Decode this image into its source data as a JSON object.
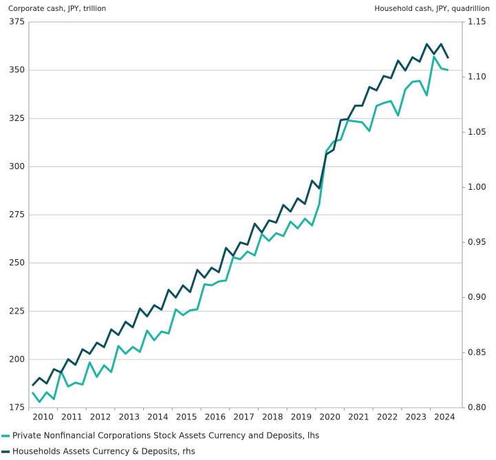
{
  "chart_data": {
    "type": "line",
    "y_label": "Corporate cash, JPY, trillion",
    "y2_label": "Household cash, JPY, quadrillion",
    "categories": [
      "2010",
      null,
      null,
      null,
      "2011",
      null,
      null,
      null,
      "2012",
      null,
      null,
      null,
      "2013",
      null,
      null,
      null,
      "2014",
      null,
      null,
      null,
      "2015",
      null,
      null,
      null,
      "2016",
      null,
      null,
      null,
      "2017",
      null,
      null,
      null,
      "2018",
      null,
      null,
      null,
      "2019",
      null,
      null,
      null,
      "2020",
      null,
      null,
      null,
      "2021",
      null,
      null,
      null,
      "2022",
      null,
      null,
      null,
      "2023",
      null,
      null,
      null,
      "2024",
      null,
      null
    ],
    "series": [
      {
        "name": "Private Nonfinancial Corporations Stock Assets Currency and Deposits, lhs",
        "color": "#1fb5a5",
        "axis": "y",
        "values": [
          183,
          178,
          183,
          179.5,
          194,
          186,
          188,
          187,
          198.5,
          191,
          197,
          193.5,
          207,
          203,
          206.5,
          204,
          215,
          210,
          214.5,
          213.5,
          226,
          223,
          225.5,
          226,
          239,
          238.5,
          240.5,
          241,
          253,
          252,
          256,
          254,
          265,
          261.5,
          265.5,
          264,
          271.5,
          268,
          273,
          269.5,
          280.5,
          308,
          313,
          314,
          324,
          323.5,
          323,
          318.5,
          331.5,
          333,
          334,
          326.5,
          340,
          344,
          344.5,
          337,
          357,
          351,
          350
        ]
      },
      {
        "name": "Households Assets Currency & Deposits, rhs",
        "color": "#0b4f5c",
        "axis": "y2",
        "values": [
          0.82,
          0.827,
          0.822,
          0.835,
          0.832,
          0.844,
          0.839,
          0.853,
          0.849,
          0.859,
          0.855,
          0.871,
          0.866,
          0.878,
          0.873,
          0.89,
          0.883,
          0.893,
          0.889,
          0.907,
          0.9,
          0.911,
          0.905,
          0.925,
          0.918,
          0.927,
          0.923,
          0.945,
          0.938,
          0.95,
          0.948,
          0.967,
          0.959,
          0.97,
          0.968,
          0.984,
          0.978,
          0.99,
          0.985,
          1.006,
          0.999,
          1.03,
          1.034,
          1.061,
          1.062,
          1.074,
          1.074,
          1.091,
          1.088,
          1.101,
          1.099,
          1.115,
          1.106,
          1.118,
          1.114,
          1.13,
          1.121,
          1.13,
          1.117
        ]
      }
    ],
    "ylim": [
      175,
      375
    ],
    "yticks": [
      175,
      200,
      225,
      250,
      275,
      300,
      325,
      350,
      375
    ],
    "y2lim": [
      0.8,
      1.15
    ],
    "y2ticks": [
      {
        "value": 0.8,
        "label": "0.80"
      },
      0.85,
      {
        "value": 0.9,
        "label": "0.90"
      },
      0.95,
      {
        "value": 1.0,
        "label": "1.00"
      },
      1.05,
      {
        "value": 1.1,
        "label": "1.10"
      },
      1.15
    ],
    "grid": true
  }
}
